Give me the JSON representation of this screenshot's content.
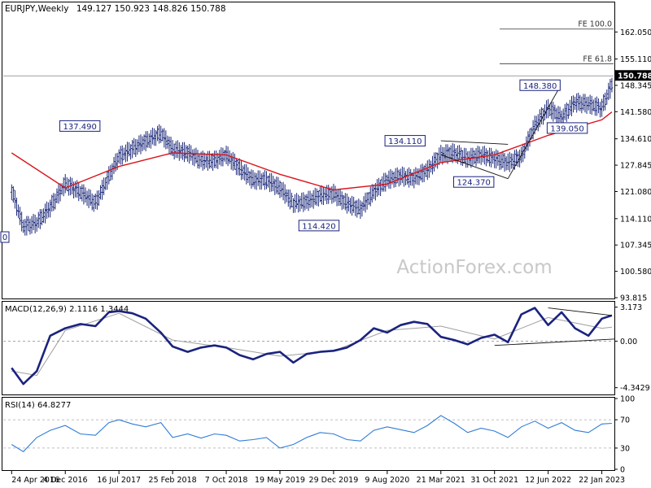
{
  "header": {
    "symbol": "EURJPY,Weekly",
    "ohlc": "149.127 150.923 148.826 150.788"
  },
  "watermark": "ActionForex.com",
  "colors": {
    "bars": "#1d2a7a",
    "ma": "#d9141b",
    "macd": "#1a237e",
    "signal": "#9e9e9e",
    "rsi": "#2f7cd6",
    "frame": "#000000",
    "label_border": "#1a237e",
    "watermark": "#c8c8c8"
  },
  "chart_data": [
    {
      "type": "line",
      "title": "EURJPY,Weekly",
      "ohlc_latest": {
        "open": 149.127,
        "high": 150.923,
        "low": 148.826,
        "close": 150.788
      },
      "y_ticks": [
        "162.050",
        "155.110",
        "148.345",
        "141.580",
        "134.610",
        "127.845",
        "121.080",
        "114.110",
        "107.345",
        "100.580",
        "93.815"
      ],
      "ylim": [
        93.815,
        166.5
      ],
      "x_ticks": [
        "24 Apr 2016",
        "4 Dec 2016",
        "16 Jul 2017",
        "25 Feb 2018",
        "7 Oct 2018",
        "19 May 2019",
        "29 Dec 2019",
        "9 Aug 2020",
        "21 Mar 2021",
        "31 Oct 2021",
        "12 Jun 2022",
        "22 Jan 2023"
      ],
      "price_series": {
        "name": "EURJPY",
        "x": [
          "2016-04-24",
          "2016-06-12",
          "2016-08-07",
          "2016-10-02",
          "2016-12-04",
          "2017-02-05",
          "2017-04-09",
          "2017-06-04",
          "2017-07-16",
          "2017-09-10",
          "2017-11-05",
          "2018-01-07",
          "2018-02-25",
          "2018-04-29",
          "2018-06-24",
          "2018-08-19",
          "2018-10-07",
          "2018-12-02",
          "2019-01-27",
          "2019-03-24",
          "2019-05-19",
          "2019-07-14",
          "2019-09-08",
          "2019-11-03",
          "2019-12-29",
          "2020-02-23",
          "2020-04-19",
          "2020-06-14",
          "2020-08-09",
          "2020-10-04",
          "2020-11-29",
          "2021-01-24",
          "2021-03-21",
          "2021-05-16",
          "2021-07-11",
          "2021-09-05",
          "2021-10-31",
          "2021-12-26",
          "2022-02-20",
          "2022-04-17",
          "2022-06-12",
          "2022-08-07",
          "2022-10-02",
          "2022-11-27",
          "2023-01-22",
          "2023-03-05"
        ],
        "y": [
          121.5,
          112.0,
          113.0,
          117.0,
          123.0,
          121.0,
          118.0,
          125.0,
          130.0,
          132.0,
          134.0,
          136.0,
          132.0,
          131.0,
          129.0,
          129.0,
          130.5,
          127.0,
          124.0,
          124.0,
          122.0,
          118.0,
          118.5,
          120.0,
          120.5,
          118.0,
          116.5,
          121.0,
          124.0,
          125.0,
          124.5,
          126.5,
          130.5,
          131.0,
          129.5,
          130.5,
          129.5,
          128.5,
          130.0,
          138.0,
          142.5,
          140.0,
          144.0,
          143.5,
          142.5,
          148.5
        ]
      },
      "moving_average": {
        "x": [
          "2016-04-24",
          "2016-12-04",
          "2017-07-16",
          "2018-02-25",
          "2018-10-07",
          "2019-05-19",
          "2019-12-29",
          "2020-08-09",
          "2021-03-21",
          "2021-10-31",
          "2022-06-12",
          "2023-01-22",
          "2023-03-05"
        ],
        "y": [
          131.0,
          122.0,
          127.5,
          131.0,
          130.5,
          125.5,
          121.5,
          123.0,
          128.5,
          130.5,
          135.5,
          139.5,
          141.5
        ]
      },
      "annotations": [
        "137.490",
        "114.420",
        "134.110",
        "124.370",
        "148.380",
        "139.050"
      ],
      "annotation_values": [
        137.49,
        114.42,
        134.11,
        124.37,
        148.38,
        139.05
      ],
      "fibonacci_labels": [
        "FE 100.0",
        "FE 61.8"
      ],
      "fibonacci_values": [
        162.8,
        153.9
      ],
      "horizontal_line": 150.788,
      "last_price_label": "150.788",
      "clipped_left_label": "0"
    },
    {
      "type": "line",
      "title": "MACD(12,26,9) 2.1116 1.3444",
      "y_ticks": [
        "3.173",
        "0.00",
        "-4.3429"
      ],
      "ylim": [
        -4.9,
        3.6
      ],
      "series": [
        {
          "name": "MACD",
          "x": [
            "2016-04-24",
            "2016-06-12",
            "2016-08-07",
            "2016-10-02",
            "2016-12-04",
            "2017-02-05",
            "2017-04-09",
            "2017-06-04",
            "2017-07-16",
            "2017-09-10",
            "2017-11-05",
            "2018-01-07",
            "2018-02-25",
            "2018-04-29",
            "2018-06-24",
            "2018-08-19",
            "2018-10-07",
            "2018-12-02",
            "2019-01-27",
            "2019-03-24",
            "2019-05-19",
            "2019-07-14",
            "2019-09-08",
            "2019-11-03",
            "2019-12-29",
            "2020-02-23",
            "2020-04-19",
            "2020-06-14",
            "2020-08-09",
            "2020-10-04",
            "2020-11-29",
            "2021-01-24",
            "2021-03-21",
            "2021-05-16",
            "2021-07-11",
            "2021-09-05",
            "2021-10-31",
            "2021-12-26",
            "2022-02-20",
            "2022-04-17",
            "2022-06-12",
            "2022-08-07",
            "2022-10-02",
            "2022-11-27",
            "2023-01-22",
            "2023-03-05"
          ],
          "y": [
            -2.5,
            -4.0,
            -2.8,
            0.5,
            1.2,
            1.6,
            1.4,
            2.7,
            2.8,
            2.6,
            2.1,
            0.8,
            -0.5,
            -1.0,
            -0.6,
            -0.4,
            -0.6,
            -1.3,
            -1.7,
            -1.2,
            -1.0,
            -2.0,
            -1.2,
            -1.0,
            -0.9,
            -0.6,
            0.1,
            1.2,
            0.8,
            1.5,
            1.8,
            1.6,
            0.4,
            0.1,
            -0.3,
            0.3,
            0.6,
            -0.1,
            2.5,
            3.1,
            1.5,
            2.7,
            1.2,
            0.5,
            2.1,
            2.4
          ]
        },
        {
          "name": "Signal",
          "x": [
            "2016-04-24",
            "2016-08-07",
            "2016-12-04",
            "2017-07-16",
            "2018-02-25",
            "2018-10-07",
            "2019-05-19",
            "2019-12-29",
            "2020-08-09",
            "2021-03-21",
            "2021-10-31",
            "2022-06-12",
            "2023-01-22",
            "2023-03-05"
          ],
          "y": [
            -2.8,
            -3.2,
            1.0,
            2.6,
            0.1,
            -0.6,
            -1.4,
            -0.9,
            1.0,
            1.4,
            0.2,
            2.2,
            1.2,
            1.3
          ]
        }
      ],
      "trendline_labels": []
    },
    {
      "type": "line",
      "title": "RSI(14) 64.8277",
      "y_ticks": [
        "100",
        "70",
        "30",
        "0"
      ],
      "ylim": [
        0,
        100
      ],
      "series": [
        {
          "name": "RSI",
          "x": [
            "2016-04-24",
            "2016-06-12",
            "2016-08-07",
            "2016-10-02",
            "2016-12-04",
            "2017-02-05",
            "2017-04-09",
            "2017-06-04",
            "2017-07-16",
            "2017-09-10",
            "2017-11-05",
            "2018-01-07",
            "2018-02-25",
            "2018-04-29",
            "2018-06-24",
            "2018-08-19",
            "2018-10-07",
            "2018-12-02",
            "2019-01-27",
            "2019-03-24",
            "2019-05-19",
            "2019-07-14",
            "2019-09-08",
            "2019-11-03",
            "2019-12-29",
            "2020-02-23",
            "2020-04-19",
            "2020-06-14",
            "2020-08-09",
            "2020-10-04",
            "2020-11-29",
            "2021-01-24",
            "2021-03-21",
            "2021-05-16",
            "2021-07-11",
            "2021-09-05",
            "2021-10-31",
            "2021-12-26",
            "2022-02-20",
            "2022-04-17",
            "2022-06-12",
            "2022-08-07",
            "2022-10-02",
            "2022-11-27",
            "2023-01-22",
            "2023-03-05"
          ],
          "y": [
            35,
            25,
            45,
            55,
            62,
            50,
            48,
            66,
            70,
            64,
            60,
            66,
            45,
            50,
            44,
            50,
            48,
            40,
            42,
            45,
            30,
            35,
            45,
            52,
            50,
            42,
            40,
            55,
            60,
            56,
            52,
            62,
            76,
            65,
            52,
            58,
            54,
            45,
            60,
            68,
            58,
            66,
            55,
            52,
            64,
            65
          ]
        }
      ],
      "levels": [
        70,
        30
      ]
    }
  ]
}
